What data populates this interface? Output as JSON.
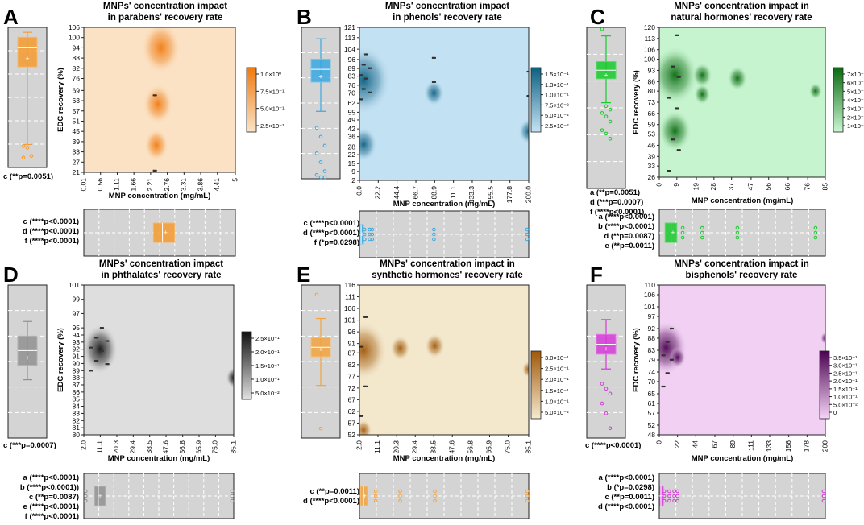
{
  "chart_data": [
    {
      "panel": "A",
      "type": "heatmap",
      "title": [
        "MNPs' concentration impact",
        "in parabens' recovery rate"
      ],
      "xlabel": "MNP concentration (mg/mL)",
      "ylabel": "EDC recovery (%)",
      "xticks": [
        "0.01",
        "0.56",
        "1.11",
        "1.66",
        "2.21",
        "2.76",
        "3.31",
        "3.86",
        "4.41",
        "5"
      ],
      "yticks": [
        "21",
        "27",
        "33",
        "39",
        "45",
        "51",
        "57",
        "63",
        "69",
        "76",
        "82",
        "88",
        "94",
        "100",
        "106"
      ],
      "colorbar": [
        "1.0×10⁰",
        "7.5×10⁻¹",
        "5.0×10⁻¹",
        "2.5×10⁻¹"
      ],
      "colors": [
        "#fbe4c8",
        "#f07a10"
      ],
      "blobs": [
        {
          "x": 2.55,
          "y": 94,
          "r": 0.13
        },
        {
          "x": 2.45,
          "y": 61,
          "r": 0.1
        },
        {
          "x": 2.4,
          "y": 37,
          "r": 0.08
        }
      ],
      "points_x": [
        2.35
      ],
      "points_y_range": [
        22,
        104
      ],
      "left_box": {
        "q1": 82,
        "median": 94,
        "q3": 100,
        "whisker_low": 35,
        "whisker_high": 103,
        "mean": 87,
        "outliers": [
          34,
          33,
          28,
          27
        ],
        "color": "#f59a2e"
      },
      "bottom_box": {
        "q1": 2.3,
        "median": 2.6,
        "q3": 3.0,
        "mean": 2.7,
        "outliers": [],
        "color": "#f59a2e"
      },
      "left_annotations": [
        "c (**p=0.0051)"
      ],
      "bottom_annotations": [
        "c (****p<0.0001)",
        "d (****p<0.0001)",
        "f (****p<0.0001)"
      ]
    },
    {
      "panel": "B",
      "type": "heatmap",
      "title": [
        "MNPs' concentration impact",
        "in phenols' recovery rate"
      ],
      "xlabel": "MNP concentration (mg/mL)",
      "ylabel": "EDC recovery (%)",
      "xticks": [
        "0.0",
        "22.2",
        "44.4",
        "66.7",
        "88.9",
        "111.1",
        "133.3",
        "155.5",
        "177.8",
        "200.0"
      ],
      "yticks": [
        "2",
        "9",
        "15",
        "22",
        "28",
        "36",
        "42",
        "49",
        "55",
        "62",
        "70",
        "76",
        "83",
        "89",
        "96",
        "104",
        "113",
        "121"
      ],
      "colorbar": [
        "1.5×10⁻¹",
        "1.3×10⁻¹",
        "1.0×10⁻¹",
        "7.5×10⁻²",
        "5.0×10⁻²",
        "2.5×10⁻²"
      ],
      "colors": [
        "#c6e4f5",
        "#0c5f80"
      ],
      "blobs": [
        {
          "x": 5,
          "y": 80,
          "r": 0.16
        },
        {
          "x": 5,
          "y": 30,
          "r": 0.08
        },
        {
          "x": 88,
          "y": 70,
          "r": 0.06
        },
        {
          "x": 200,
          "y": 40,
          "r": 0.06
        }
      ],
      "points_x": [
        2,
        5,
        8,
        12,
        88,
        200
      ],
      "points_y_range": [
        65,
        100
      ],
      "left_box": {
        "q1": 78,
        "median": 88,
        "q3": 96,
        "whisker_low": 55,
        "whisker_high": 112,
        "mean": 82,
        "outliers": [
          42,
          35,
          28,
          22,
          15,
          8,
          5,
          3,
          2
        ],
        "color": "#3aa8e0"
      },
      "bottom_box": {
        "q1": 1,
        "median": 2,
        "q3": 4,
        "mean": 3,
        "outliers": [
          6,
          12,
          15,
          88,
          200
        ],
        "color": "#3aa8e0"
      },
      "left_annotations": [],
      "bottom_annotations": [
        "c (****p<0.0001)",
        "d (****p<0.0001)",
        "f (*p=0.0298)"
      ]
    },
    {
      "panel": "C",
      "type": "heatmap",
      "title": [
        "MNPs' concentration impact in",
        "natural hormones' recovery rate"
      ],
      "xlabel": "MNP concentration (mg/mL)",
      "ylabel": "EDC recovery (%)",
      "xticks": [
        "0",
        "9",
        "19",
        "28",
        "37",
        "47",
        "56",
        "66",
        "76",
        "85"
      ],
      "yticks": [
        "26",
        "33",
        "39",
        "46",
        "53",
        "59",
        "66",
        "73",
        "80",
        "86",
        "93",
        "100",
        "106",
        "113",
        "120"
      ],
      "colorbar": [
        "7×10⁻¹",
        "6×10⁻¹",
        "5×10⁻¹",
        "4×10⁻¹",
        "3×10⁻¹",
        "2×10⁻¹",
        "1×10⁻¹"
      ],
      "colors": [
        "#c9f7d2",
        "#0a6a10"
      ],
      "blobs": [
        {
          "x": 8,
          "y": 90,
          "r": 0.14
        },
        {
          "x": 8,
          "y": 55,
          "r": 0.1
        },
        {
          "x": 22,
          "y": 90,
          "r": 0.06
        },
        {
          "x": 22,
          "y": 78,
          "r": 0.05
        },
        {
          "x": 40,
          "y": 88,
          "r": 0.06
        },
        {
          "x": 80,
          "y": 80,
          "r": 0.04
        }
      ],
      "points_x": [
        5,
        7,
        9,
        10
      ],
      "points_y_range": [
        30,
        115
      ],
      "left_box": {
        "q1": 90,
        "median": 95,
        "q3": 100,
        "whisker_low": 76,
        "whisker_high": 115,
        "mean": 92,
        "outliers": [
          119,
          74,
          72,
          70,
          68,
          65,
          60,
          58,
          55
        ],
        "color": "#18c92c"
      },
      "bottom_box": {
        "q1": 3,
        "median": 6,
        "q3": 9,
        "mean": 7,
        "outliers": [
          12,
          22,
          40,
          80
        ],
        "color": "#18c92c"
      },
      "left_annotations": [
        "a (**p=0.0051)",
        "d (***p=0.0007)",
        "f (****p<0.0001)"
      ],
      "bottom_annotations": [
        "a (****p<0.0001)",
        "b (****p<0.0001)",
        "d (**p=0.0087)",
        "e (**p=0.0011)"
      ]
    },
    {
      "panel": "D",
      "type": "heatmap",
      "title": [
        "MNPs' concentration impact",
        "in phthalates' recovery rate"
      ],
      "xlabel": "MNP concentration (mg/mL)",
      "ylabel": "EDC recovery (%)",
      "xticks": [
        "2.0",
        "11.1",
        "20.3",
        "29.4",
        "38.5",
        "47.6",
        "56.8",
        "65.9",
        "75.0",
        "85.1"
      ],
      "yticks": [
        "80",
        "81",
        "82",
        "83",
        "84",
        "85",
        "86",
        "87",
        "88",
        "89",
        "90",
        "91",
        "92",
        "93",
        "94",
        "95",
        "97",
        "99",
        "101"
      ],
      "colorbar": [
        "2.5×10⁻¹",
        "2.0×10⁻¹",
        "1.5×10⁻¹",
        "1.0×10⁻¹",
        "5.0×10⁻²"
      ],
      "colors": [
        "#e2e2e2",
        "#101010"
      ],
      "blobs": [
        {
          "x": 11,
          "y": 92,
          "r": 0.12
        },
        {
          "x": 85,
          "y": 88,
          "r": 0.05
        }
      ],
      "points_x": [
        6,
        9,
        12,
        15
      ],
      "points_y_range": [
        89,
        95
      ],
      "left_box": {
        "q1": 90,
        "median": 92,
        "q3": 94,
        "whisker_low": 88,
        "whisker_high": 96,
        "mean": 91,
        "outliers": [],
        "color": "#909090"
      },
      "bottom_box": {
        "q1": 8,
        "median": 10,
        "q3": 14,
        "mean": 11,
        "outliers": [
          3,
          85
        ],
        "color": "#909090"
      },
      "left_annotations": [
        "c (***p=0.0007)"
      ],
      "bottom_annotations": [
        "a (****p<0.0001)",
        "b (****p<0.0001))",
        "c (**p=0.0087)",
        "e (****p<0.0001)",
        "f (****p<0.0001)"
      ]
    },
    {
      "panel": "E",
      "type": "heatmap",
      "title": [
        "MNPs' concentration impact in",
        "synthetic hormones' recovery rate"
      ],
      "xlabel": "MNP concentration (mg/mL)",
      "ylabel": "EDC recovery (%)",
      "xticks": [
        "2.0",
        "11.1",
        "20.3",
        "29.4",
        "38.5",
        "47.6",
        "56.8",
        "65.9",
        "75.0",
        "85.1"
      ],
      "yticks": [
        "52",
        "57",
        "62",
        "67",
        "72",
        "77",
        "82",
        "87",
        "91",
        "96",
        "101",
        "106",
        "111",
        "116"
      ],
      "colorbar": [
        "3.0×10⁻¹",
        "2.5×10⁻¹",
        "2.0×10⁻¹",
        "1.5×10⁻¹",
        "1.0×10⁻¹",
        "5.0×10⁻²"
      ],
      "colors": [
        "#f5ead0",
        "#a05808"
      ],
      "blobs": [
        {
          "x": 4,
          "y": 88,
          "r": 0.14
        },
        {
          "x": 22,
          "y": 89,
          "r": 0.06
        },
        {
          "x": 39,
          "y": 90,
          "r": 0.06
        },
        {
          "x": 85,
          "y": 80,
          "r": 0.04
        },
        {
          "x": 4,
          "y": 54,
          "r": 0.05
        }
      ],
      "points_x": [
        3,
        5
      ],
      "points_y_range": [
        60,
        115
      ],
      "left_box": {
        "q1": 86,
        "median": 90,
        "q3": 94,
        "whisker_low": 74,
        "whisker_high": 102,
        "mean": 89,
        "outliers": [
          112,
          56
        ],
        "color": "#f2a33f"
      },
      "bottom_box": {
        "q1": 2.5,
        "median": 4,
        "q3": 6,
        "mean": 4.5,
        "outliers": [
          10,
          22,
          39,
          85
        ],
        "color": "#f2a33f"
      },
      "left_annotations": [],
      "bottom_annotations": [
        "c (**p=0.0011)",
        "d (****p<0.0001)"
      ]
    },
    {
      "panel": "F",
      "type": "heatmap",
      "title": [
        "MNPs' concentration impact in",
        "bisphenols' recovery rate"
      ],
      "xlabel": "MNP concentration (mg/mL)",
      "ylabel": "EDC recovery (%)",
      "xticks": [
        "0",
        "22",
        "44",
        "67",
        "89",
        "111",
        "133",
        "156",
        "178",
        "200"
      ],
      "yticks": [
        "48",
        "52",
        "57",
        "61",
        "65",
        "70",
        "74",
        "79",
        "83",
        "88",
        "92",
        "97",
        "101",
        "106",
        "110"
      ],
      "colorbar": [
        "3.5×10⁻¹",
        "3.0×10⁻¹",
        "2.5×10⁻¹",
        "2.0×10⁻¹",
        "1.5×10⁻¹",
        "1.0×10⁻¹",
        "5.0×10⁻²",
        "0"
      ],
      "colors": [
        "#f5d4f7",
        "#4a0350"
      ],
      "blobs": [
        {
          "x": 8,
          "y": 84,
          "r": 0.13
        },
        {
          "x": 22,
          "y": 80,
          "r": 0.05
        },
        {
          "x": 200,
          "y": 88,
          "r": 0.03
        }
      ],
      "points_x": [
        5,
        10,
        15
      ],
      "points_y_range": [
        68,
        92
      ],
      "left_box": {
        "q1": 82,
        "median": 86,
        "q3": 90,
        "whisker_low": 76,
        "whisker_high": 96,
        "mean": 84,
        "outliers": [
          70,
          68,
          66,
          62,
          58,
          52
        ],
        "color": "#d63ad8"
      },
      "bottom_box": {
        "q1": 1,
        "median": 2,
        "q3": 3,
        "mean": 2,
        "outliers": [
          6,
          12,
          18,
          22,
          200
        ],
        "color": "#d63ad8"
      },
      "left_annotations": [
        "c (****p<0.0001)"
      ],
      "bottom_annotations": [
        "a (****p<0.0001)",
        "b (*p=0.0298)",
        "c (**p=0.0011)",
        "d (****p<0.0001)"
      ]
    }
  ]
}
